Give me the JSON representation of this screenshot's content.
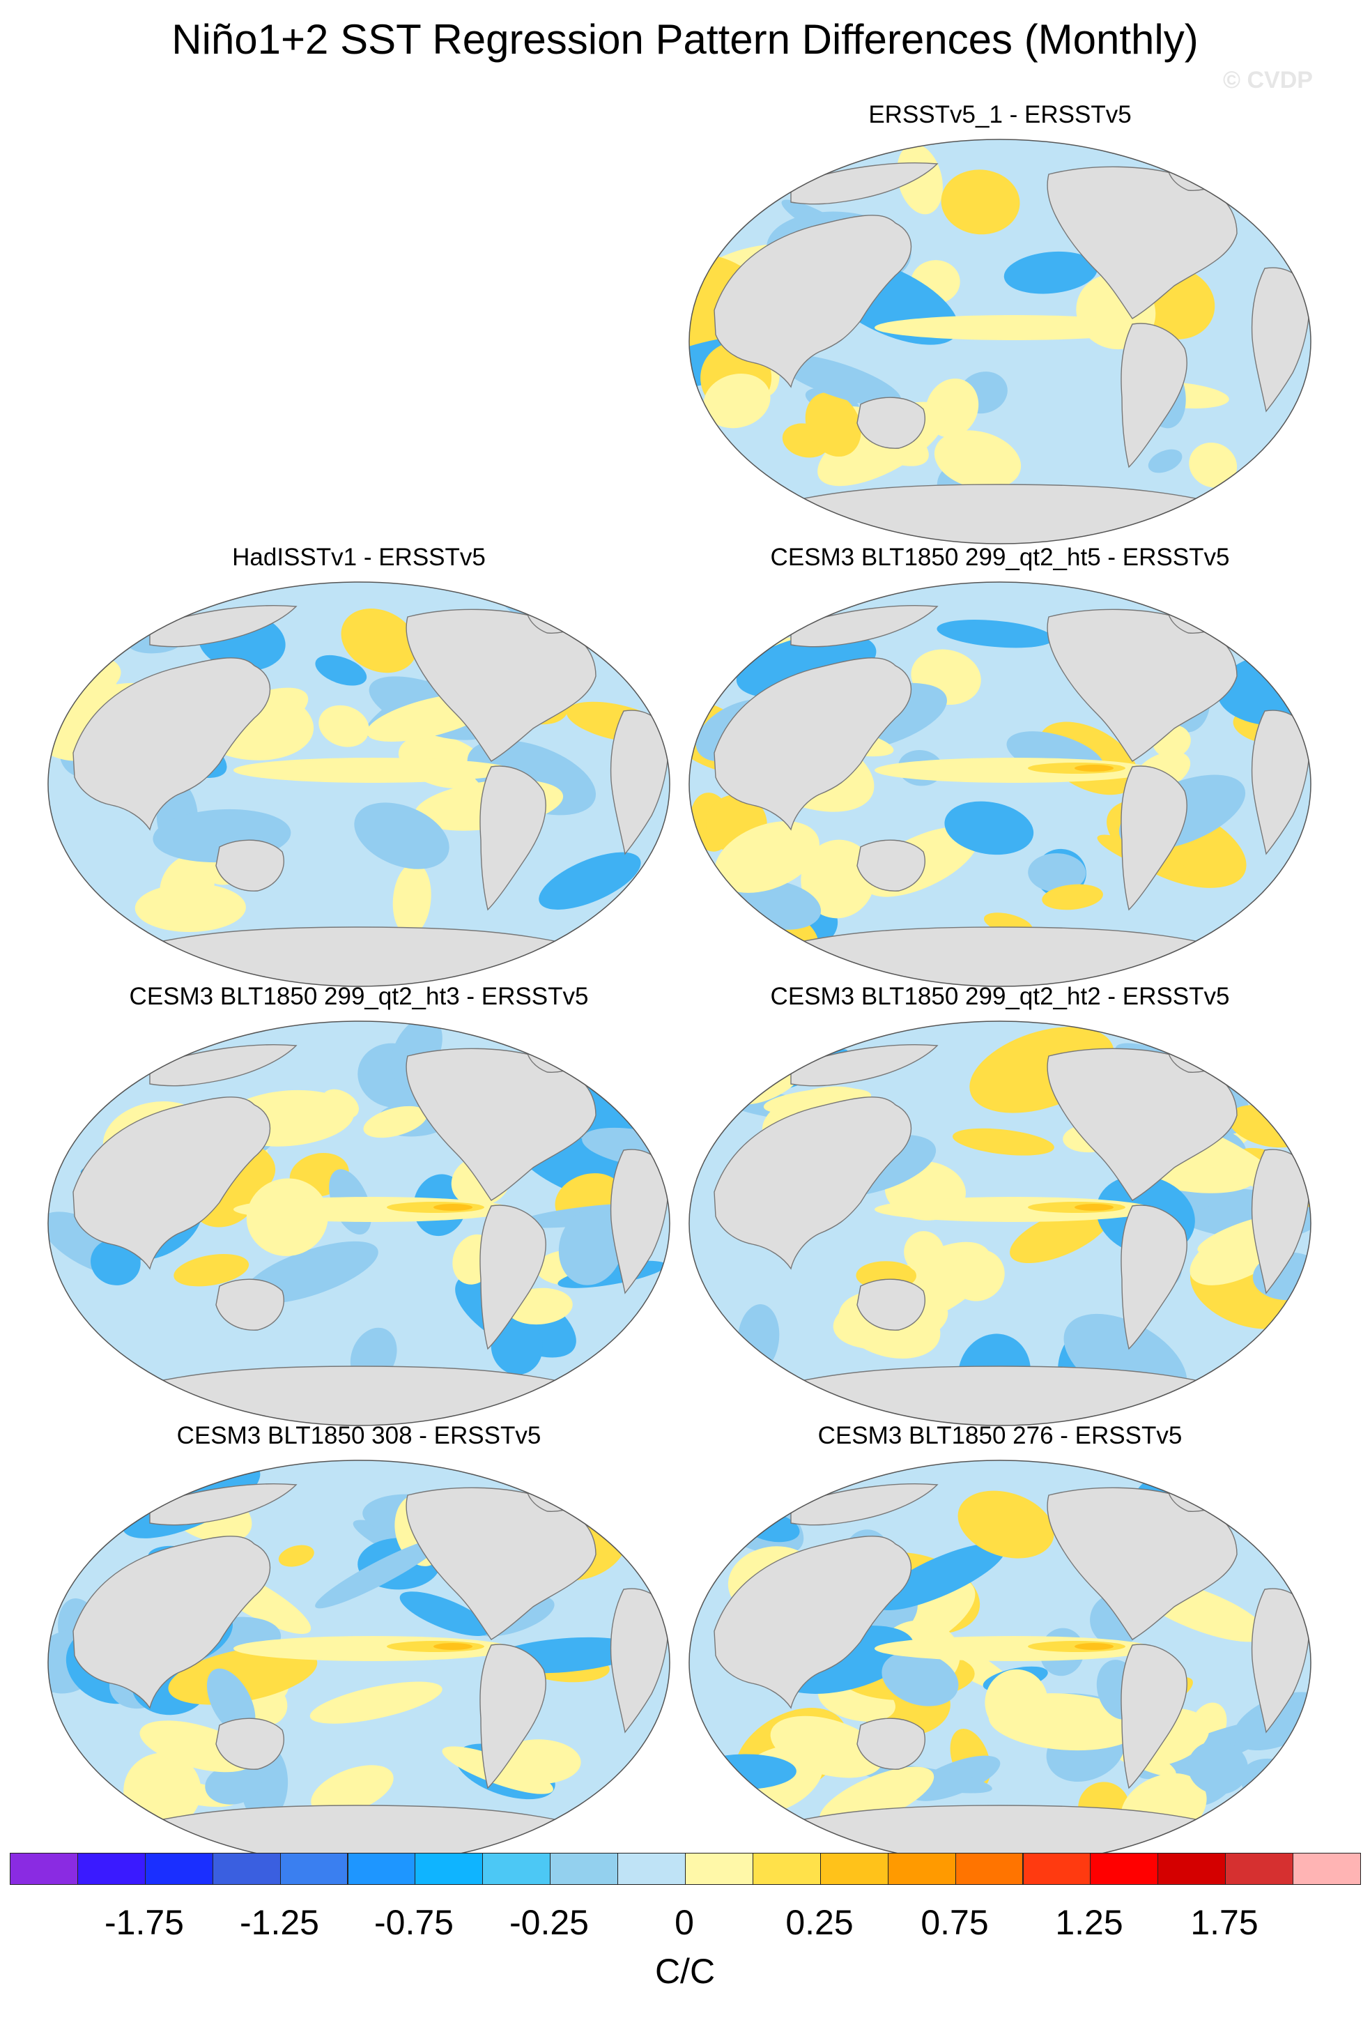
{
  "title": "Niño1+2 SST Regression Pattern Differences (Monthly)",
  "watermark": "© CVDP",
  "panels": [
    {
      "title": "ERSSTv5_1 - ERSSTv5",
      "variant": 1
    },
    {
      "title": "HadISSTv1 - ERSSTv5",
      "variant": 2
    },
    {
      "title": "CESM3 BLT1850 299_qt2_ht5 - ERSSTv5",
      "variant": 3
    },
    {
      "title": "CESM3 BLT1850 299_qt2_ht3 - ERSSTv5",
      "variant": 4
    },
    {
      "title": "CESM3 BLT1850 299_qt2_ht2 - ERSSTv5",
      "variant": 5
    },
    {
      "title": "CESM3 BLT1850 308 - ERSSTv5",
      "variant": 6
    },
    {
      "title": "CESM3 BLT1850 276 - ERSSTv5",
      "variant": 7
    }
  ],
  "colorbar": {
    "colors": [
      "#8a2be2",
      "#3a1aff",
      "#1a2fff",
      "#3a5fe0",
      "#3a7ff0",
      "#1e96ff",
      "#0fb4ff",
      "#4cc8f5",
      "#93d0ee",
      "#bfe3f6",
      "#fff8a8",
      "#ffe14a",
      "#ffc21a",
      "#ff9a00",
      "#ff7400",
      "#ff3a10",
      "#ff0000",
      "#d40000",
      "#d63030",
      "#ffb4b4"
    ],
    "tick_labels": [
      "-1.75",
      "-1.25",
      "-0.75",
      "-0.25",
      "0",
      "0.25",
      "0.75",
      "1.25",
      "1.75"
    ],
    "units": "C/C"
  },
  "map_colors": {
    "land": "#dedede",
    "coast": "#777777",
    "neutral_ocean": "#bfe3f6",
    "negative": "#93cdf0",
    "negative_strong": "#3fb1f3",
    "positive": "#fff7a3",
    "positive_strong": "#ffde45",
    "positive_peak": "#ffc21a"
  }
}
